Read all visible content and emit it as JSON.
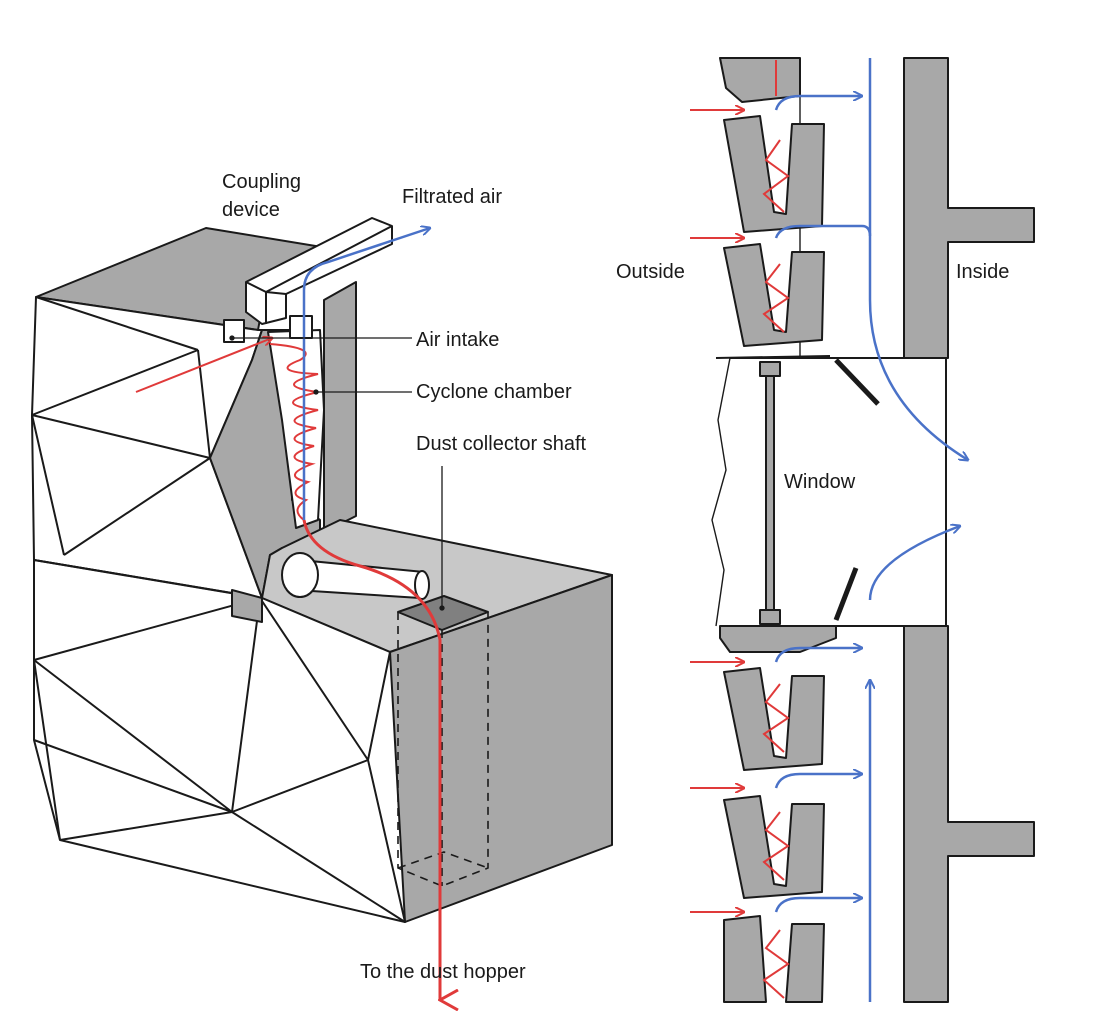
{
  "labels": {
    "coupling_line1": "Coupling",
    "coupling_line2": "device",
    "filtrated_air": "Filtrated air",
    "air_intake": "Air intake",
    "cyclone_chamber": "Cyclone chamber",
    "dust_collector_shaft": "Dust collector shaft",
    "to_dust_hopper": "To the dust hopper",
    "outside": "Outside",
    "inside": "Inside",
    "window": "Window"
  },
  "colors": {
    "dust_flow": "#e03a3a",
    "clean_air_flow": "#4a72c8",
    "wall_fill": "#a8a8a8",
    "shade_fill": "#c8c8c8",
    "outline": "#1a1a1a"
  }
}
